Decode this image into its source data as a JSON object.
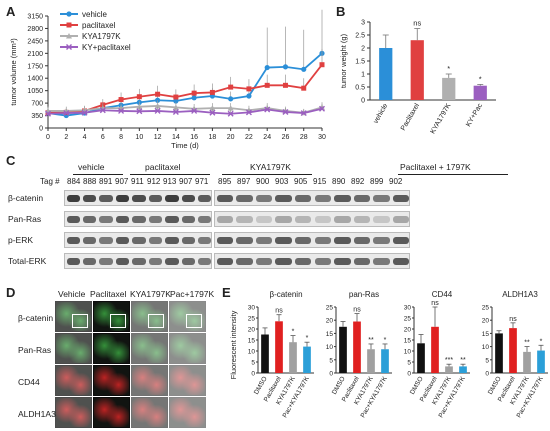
{
  "panels": {
    "A": "A",
    "B": "B",
    "C": "C",
    "D": "D",
    "E": "E"
  },
  "panelA": {
    "chart_data": {
      "type": "line",
      "xlabel": "Time (d)",
      "ylabel": "tumor volume (mm³)",
      "x": [
        0,
        2,
        4,
        6,
        8,
        10,
        12,
        14,
        16,
        18,
        20,
        22,
        24,
        26,
        28,
        30
      ],
      "yticks": [
        0,
        350,
        700,
        1050,
        1400,
        1750,
        2100,
        2450,
        2800,
        3150
      ],
      "ylim": [
        0,
        3150
      ],
      "legend_position": "top-left",
      "series": [
        {
          "name": "vehicle",
          "color": "#2b8fd8",
          "marker": "circle",
          "values": [
            420,
            350,
            420,
            560,
            640,
            720,
            780,
            760,
            850,
            900,
            820,
            900,
            1700,
            1720,
            1650,
            2100
          ]
        },
        {
          "name": "paclitaxel",
          "color": "#e04040",
          "marker": "square",
          "values": [
            430,
            440,
            480,
            650,
            800,
            880,
            950,
            870,
            980,
            1000,
            1150,
            1100,
            1200,
            1200,
            1120,
            1780
          ]
        },
        {
          "name": "KYA1797K",
          "color": "#b0b0b0",
          "marker": "triangle",
          "values": [
            480,
            480,
            500,
            560,
            560,
            600,
            620,
            580,
            540,
            560,
            560,
            500,
            560,
            480,
            430,
            580
          ]
        },
        {
          "name": "KY+paclitaxel",
          "color": "#9b5fc0",
          "marker": "x",
          "values": [
            400,
            420,
            430,
            500,
            480,
            470,
            480,
            450,
            480,
            430,
            400,
            440,
            520,
            450,
            420,
            540
          ]
        }
      ]
    }
  },
  "panelB": {
    "chart_data": {
      "type": "bar",
      "ylabel": "tumor weight (g)",
      "yticks": [
        0,
        0.5,
        1,
        1.5,
        2,
        2.5,
        3
      ],
      "ylim": [
        0,
        3
      ],
      "categories": [
        "vehicle",
        "Paclitaxel",
        "KYA1797K",
        "KY+Pac"
      ],
      "values": [
        2.0,
        2.3,
        0.85,
        0.55
      ],
      "errors": [
        0.5,
        0.45,
        0.15,
        0.05
      ],
      "colors": [
        "#2b8fd8",
        "#e04040",
        "#b0b0b0",
        "#9b5fc0"
      ],
      "sig": [
        "",
        "ns",
        "*",
        "*"
      ]
    }
  },
  "panelC": {
    "tag_label": "Tag #",
    "headers": [
      "vehicle",
      "paclitaxel",
      "KYA1797K",
      "Paclitaxel + 1797K"
    ],
    "tags_left": [
      "884",
      "888",
      "891",
      "907",
      "911",
      "912",
      "913",
      "907",
      "971"
    ],
    "tags_right": [
      "895",
      "897",
      "900",
      "903",
      "905",
      "915",
      "890",
      "892",
      "899",
      "902"
    ],
    "rows": [
      "β-catenin",
      "Pan-Ras",
      "p-ERK",
      "Total-ERK"
    ]
  },
  "panelD": {
    "cols": [
      "Vehicle",
      "Paclitaxel",
      "KYA1797K",
      "Pac+1797K"
    ],
    "rows": [
      {
        "label": "β-catenin",
        "color": "#2a8a30"
      },
      {
        "label": "Pan-Ras",
        "color": "#2a8a30"
      },
      {
        "label": "CD44",
        "color": "#b81818"
      },
      {
        "label": "ALDH1A3",
        "color": "#b81818"
      }
    ]
  },
  "panelE": {
    "ylabel": "Fluorescent intensity",
    "categories": [
      "DMSO",
      "Paclitaxel",
      "KYA1797K",
      "Pac+KYA1797K"
    ],
    "colors": [
      "#111111",
      "#e02020",
      "#a0a0a0",
      "#2b9fd8"
    ],
    "chart_data": [
      {
        "type": "bar",
        "title": "β-catenin",
        "yticks": [
          0,
          5,
          10,
          15,
          20,
          25,
          30
        ],
        "ylim": [
          0,
          30
        ],
        "values": [
          17.5,
          23.5,
          14,
          12
        ],
        "errors": [
          3,
          3,
          3,
          2
        ],
        "sig": [
          "",
          "ns",
          "*",
          "*"
        ]
      },
      {
        "type": "bar",
        "title": "pan-Ras",
        "yticks": [
          0,
          5,
          10,
          15,
          20,
          25
        ],
        "ylim": [
          0,
          25
        ],
        "values": [
          17.5,
          19.5,
          9,
          9
        ],
        "errors": [
          2,
          3,
          2,
          2
        ],
        "sig": [
          "",
          "ns",
          "**",
          "*"
        ]
      },
      {
        "type": "bar",
        "title": "CD44",
        "yticks": [
          0,
          5,
          10,
          15,
          20,
          25,
          30
        ],
        "ylim": [
          0,
          30
        ],
        "values": [
          13.5,
          21,
          3,
          3
        ],
        "errors": [
          4,
          9,
          1,
          1
        ],
        "sig": [
          "",
          "ns",
          "***",
          "**"
        ]
      },
      {
        "type": "bar",
        "title": "ALDH1A3",
        "yticks": [
          0,
          5,
          10,
          15,
          20,
          25
        ],
        "ylim": [
          0,
          25
        ],
        "values": [
          15,
          17,
          8,
          8.5
        ],
        "errors": [
          1,
          2,
          2,
          2
        ],
        "sig": [
          "",
          "ns",
          "**",
          "*"
        ]
      }
    ]
  }
}
